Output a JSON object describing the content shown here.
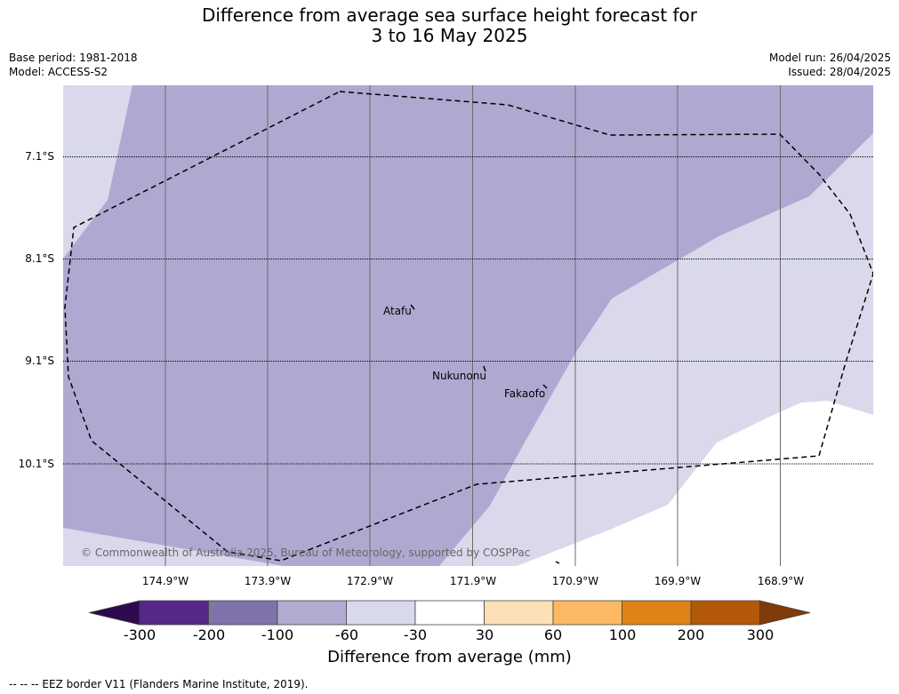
{
  "title": {
    "line1": "Difference from average sea surface height forecast for",
    "line2": "3 to 16 May 2025"
  },
  "meta": {
    "base_period": "Base period: 1981-2018",
    "model": "Model: ACCESS-S2",
    "model_run": "Model run: 26/04/2025",
    "issued": "Issued: 28/04/2025"
  },
  "map": {
    "lat_labels": [
      "7.1°S",
      "8.1°S",
      "9.1°S",
      "10.1°S"
    ],
    "lon_labels": [
      "174.9°W",
      "173.9°W",
      "172.9°W",
      "171.9°W",
      "170.9°W",
      "169.9°W",
      "168.9°W"
    ],
    "places": [
      "Atafu",
      "Nukunonu",
      "Fakaofo"
    ],
    "copyright": "© Commonwealth of Australia 2025, Bureau of Meteorology, supported by COSPPac",
    "colors": {
      "range_minus100_to_minus60": "#afa9d1",
      "range_minus60_to_minus30": "#d9d9eb",
      "range_minus30_to_30": "#ffffff"
    }
  },
  "colorbar": {
    "title": "Difference from average (mm)",
    "ticks": [
      "-300",
      "-200",
      "-100",
      "-60",
      "-30",
      "30",
      "60",
      "100",
      "200",
      "300"
    ],
    "colors": [
      "#2d0a4e",
      "#542788",
      "#8073ac",
      "#b2abd2",
      "#d8daeb",
      "#ffffff",
      "#fee0b6",
      "#fdb863",
      "#e08214",
      "#b35806",
      "#7f3b08"
    ]
  },
  "legend": {
    "eez": "-- -- -- EEZ border V11 (Flanders Marine Institute, 2019)."
  }
}
